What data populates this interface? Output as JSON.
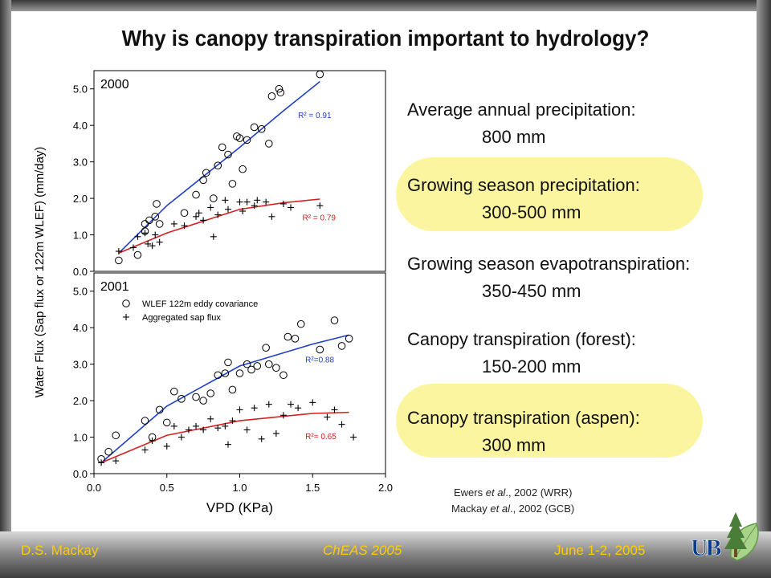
{
  "slide": {
    "title": "Why is canopy transpiration important to hydrology?"
  },
  "facts": [
    {
      "label": "Average annual precipitation:",
      "value": "800 mm",
      "highlight": false
    },
    {
      "label": "Growing season precipitation:",
      "value": "300-500 mm",
      "highlight": true
    },
    {
      "label": "Growing season evapotranspiration:",
      "value": "350-450 mm",
      "highlight": false
    },
    {
      "label": "Canopy transpiration (forest):",
      "value": "150-200 mm",
      "highlight": false
    },
    {
      "label": "Canopy transpiration (aspen):",
      "value": "300 mm",
      "highlight": true
    }
  ],
  "references": {
    "line1": {
      "authors": "Ewers",
      "etal": "et al",
      "rest": "., 2002 (WRR)"
    },
    "line2": {
      "authors": "Mackay",
      "etal": "et al",
      "rest": "., 2002 (GCB)"
    }
  },
  "footer": {
    "author": "D.S. Mackay",
    "event": "ChEAS 2005",
    "date": "June 1-2, 2005"
  },
  "colors": {
    "eddy_fit": "#1f3fc8",
    "sap_fit": "#d42020",
    "highlight": "#fbf5a0",
    "footer_text": "#ffcc00"
  },
  "logo": {
    "icon": "university-logo-with-tree-and-leaf",
    "text": "UB"
  },
  "chart_data": {
    "type": "scatter",
    "ylabel": "Water Flux (Sap flux or 122m WLEF) (mm/day)",
    "xlabel": "VPD (KPa)",
    "xlim": [
      0.0,
      2.0
    ],
    "ylim": [
      0.0,
      5.5
    ],
    "x_ticks": [
      "0.0",
      "0.5",
      "1.0",
      "1.5",
      "2.0"
    ],
    "y_ticks": [
      "0.0",
      "1.0",
      "2.0",
      "3.0",
      "4.0",
      "5.0"
    ],
    "legend": [
      {
        "marker": "circle",
        "label": "WLEF 122m eddy covariance"
      },
      {
        "marker": "plus",
        "label": "Aggregated sap flux"
      }
    ],
    "panels": [
      {
        "label": "2000",
        "series": [
          {
            "name": "WLEF 122m eddy covariance",
            "marker": "circle",
            "fit_r2": "R² = 0.91",
            "fit_curve": [
              [
                0.17,
                0.5
              ],
              [
                0.5,
                1.8
              ],
              [
                1.0,
                3.4
              ],
              [
                1.3,
                4.4
              ],
              [
                1.55,
                5.2
              ]
            ],
            "points": [
              [
                0.17,
                0.3
              ],
              [
                0.3,
                0.45
              ],
              [
                0.35,
                1.3
              ],
              [
                0.35,
                1.1
              ],
              [
                0.38,
                1.4
              ],
              [
                0.42,
                1.5
              ],
              [
                0.43,
                1.85
              ],
              [
                0.45,
                1.3
              ],
              [
                0.62,
                1.6
              ],
              [
                0.7,
                2.1
              ],
              [
                0.75,
                2.5
              ],
              [
                0.77,
                2.7
              ],
              [
                0.82,
                2.0
              ],
              [
                0.85,
                2.9
              ],
              [
                0.88,
                3.4
              ],
              [
                0.92,
                3.2
              ],
              [
                0.95,
                2.4
              ],
              [
                0.98,
                3.7
              ],
              [
                1.0,
                3.65
              ],
              [
                1.02,
                2.8
              ],
              [
                1.05,
                3.6
              ],
              [
                1.1,
                3.95
              ],
              [
                1.15,
                3.9
              ],
              [
                1.22,
                4.8
              ],
              [
                1.27,
                5.0
              ],
              [
                1.28,
                4.9
              ],
              [
                1.2,
                3.5
              ],
              [
                1.55,
                5.4
              ]
            ]
          },
          {
            "name": "Aggregated sap flux",
            "marker": "plus",
            "fit_r2": "R² = 0.79",
            "fit_curve": [
              [
                0.17,
                0.5
              ],
              [
                0.5,
                1.05
              ],
              [
                1.0,
                1.7
              ],
              [
                1.3,
                1.88
              ],
              [
                1.55,
                1.98
              ]
            ],
            "points": [
              [
                0.17,
                0.55
              ],
              [
                0.27,
                0.65
              ],
              [
                0.3,
                0.95
              ],
              [
                0.35,
                1.05
              ],
              [
                0.37,
                0.75
              ],
              [
                0.4,
                0.7
              ],
              [
                0.42,
                1.0
              ],
              [
                0.45,
                0.8
              ],
              [
                0.55,
                1.3
              ],
              [
                0.62,
                1.25
              ],
              [
                0.7,
                1.5
              ],
              [
                0.72,
                1.6
              ],
              [
                0.75,
                1.4
              ],
              [
                0.8,
                1.75
              ],
              [
                0.82,
                0.95
              ],
              [
                0.85,
                1.55
              ],
              [
                0.9,
                1.95
              ],
              [
                0.92,
                1.7
              ],
              [
                1.0,
                1.9
              ],
              [
                1.02,
                1.65
              ],
              [
                1.05,
                1.9
              ],
              [
                1.1,
                1.8
              ],
              [
                1.12,
                1.95
              ],
              [
                1.18,
                1.9
              ],
              [
                1.22,
                1.5
              ],
              [
                1.3,
                1.85
              ],
              [
                1.35,
                1.75
              ],
              [
                1.55,
                1.8
              ]
            ]
          }
        ]
      },
      {
        "label": "2001",
        "series": [
          {
            "name": "WLEF 122m eddy covariance",
            "marker": "circle",
            "fit_r2": "R²=0.88",
            "fit_curve": [
              [
                0.05,
                0.3
              ],
              [
                0.5,
                1.85
              ],
              [
                1.0,
                2.95
              ],
              [
                1.5,
                3.55
              ],
              [
                1.75,
                3.8
              ]
            ],
            "points": [
              [
                0.05,
                0.4
              ],
              [
                0.1,
                0.6
              ],
              [
                0.15,
                1.05
              ],
              [
                0.35,
                1.45
              ],
              [
                0.4,
                1.0
              ],
              [
                0.45,
                1.75
              ],
              [
                0.5,
                1.4
              ],
              [
                0.55,
                2.25
              ],
              [
                0.6,
                2.05
              ],
              [
                0.7,
                2.1
              ],
              [
                0.75,
                2.0
              ],
              [
                0.8,
                2.2
              ],
              [
                0.85,
                2.7
              ],
              [
                0.9,
                2.75
              ],
              [
                0.92,
                3.05
              ],
              [
                0.95,
                2.3
              ],
              [
                1.0,
                2.75
              ],
              [
                1.05,
                3.0
              ],
              [
                1.08,
                2.85
              ],
              [
                1.12,
                2.95
              ],
              [
                1.18,
                3.45
              ],
              [
                1.2,
                3.0
              ],
              [
                1.25,
                2.9
              ],
              [
                1.3,
                2.7
              ],
              [
                1.33,
                3.75
              ],
              [
                1.38,
                3.7
              ],
              [
                1.42,
                4.1
              ],
              [
                1.55,
                3.4
              ],
              [
                1.65,
                4.2
              ],
              [
                1.7,
                3.5
              ],
              [
                1.75,
                3.7
              ]
            ]
          },
          {
            "name": "Aggregated sap flux",
            "marker": "plus",
            "fit_r2": "R²= 0.65",
            "fit_curve": [
              [
                0.05,
                0.3
              ],
              [
                0.5,
                1.05
              ],
              [
                1.0,
                1.45
              ],
              [
                1.5,
                1.65
              ],
              [
                1.75,
                1.68
              ]
            ],
            "points": [
              [
                0.05,
                0.3
              ],
              [
                0.15,
                0.35
              ],
              [
                0.35,
                0.65
              ],
              [
                0.4,
                0.9
              ],
              [
                0.5,
                0.75
              ],
              [
                0.55,
                1.3
              ],
              [
                0.6,
                1.0
              ],
              [
                0.65,
                1.2
              ],
              [
                0.7,
                1.3
              ],
              [
                0.75,
                1.2
              ],
              [
                0.8,
                1.5
              ],
              [
                0.85,
                1.25
              ],
              [
                0.9,
                1.3
              ],
              [
                0.92,
                0.8
              ],
              [
                0.95,
                1.45
              ],
              [
                1.0,
                1.75
              ],
              [
                1.05,
                1.2
              ],
              [
                1.1,
                1.8
              ],
              [
                1.15,
                0.95
              ],
              [
                1.2,
                1.9
              ],
              [
                1.25,
                1.1
              ],
              [
                1.3,
                1.6
              ],
              [
                1.35,
                1.9
              ],
              [
                1.4,
                1.8
              ],
              [
                1.5,
                1.95
              ],
              [
                1.6,
                1.55
              ],
              [
                1.65,
                1.75
              ],
              [
                1.7,
                1.35
              ],
              [
                1.78,
                1.0
              ]
            ]
          }
        ]
      }
    ]
  }
}
